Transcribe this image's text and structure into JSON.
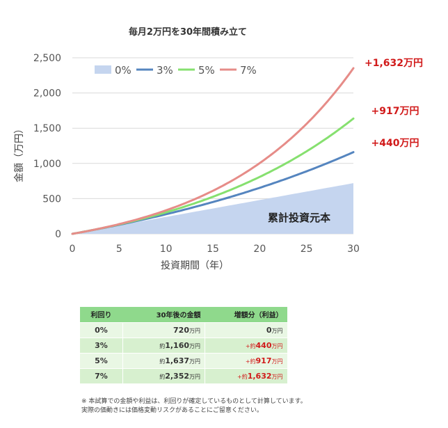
{
  "chart_data": {
    "type": "area+line",
    "title": "毎月2万円を30年間積み立て",
    "xlabel": "投資期間（年）",
    "ylabel": "金額（万円）",
    "xlim": [
      0,
      30
    ],
    "ylim": [
      0,
      2500
    ],
    "xticks": [
      "0",
      "5",
      "10",
      "15",
      "20",
      "25",
      "30"
    ],
    "yticks": [
      "0",
      "500",
      "1,000",
      "1,500",
      "2,000",
      "2,500"
    ],
    "legend_position": "top-left",
    "series": [
      {
        "name": "0%",
        "kind": "area",
        "rate": 0,
        "end_value": 720,
        "color": "#c5d5ef"
      },
      {
        "name": "3%",
        "kind": "line",
        "rate": 0.03,
        "end_value": 1160,
        "color": "#5585bf"
      },
      {
        "name": "5%",
        "kind": "line",
        "rate": 0.05,
        "end_value": 1637,
        "color": "#86e06f"
      },
      {
        "name": "7%",
        "kind": "line",
        "rate": 0.07,
        "end_value": 2352,
        "color": "#e68c88"
      }
    ],
    "area_label": "累計投資元本",
    "gain_labels": [
      {
        "text": "+1,632万円",
        "series": "7%"
      },
      {
        "text": "+917万円",
        "series": "5%"
      },
      {
        "text": "+440万円",
        "series": "3%"
      }
    ]
  },
  "table": {
    "headers": [
      "利回り",
      "30年後の金額",
      "増額分（利益）"
    ],
    "rows": [
      {
        "rate": "0%",
        "prefix": "",
        "amount": "720",
        "unit": "万円",
        "gain_prefix": "",
        "gain": "0",
        "gain_unit": "万円",
        "gain_red": false
      },
      {
        "rate": "3%",
        "prefix": "約",
        "amount": "1,160",
        "unit": "万円",
        "gain_prefix": "+約",
        "gain": "440",
        "gain_unit": "万円",
        "gain_red": true
      },
      {
        "rate": "5%",
        "prefix": "約",
        "amount": "1,637",
        "unit": "万円",
        "gain_prefix": "+約",
        "gain": "917",
        "gain_unit": "万円",
        "gain_red": true
      },
      {
        "rate": "7%",
        "prefix": "約",
        "amount": "2,352",
        "unit": "万円",
        "gain_prefix": "+約",
        "gain": "1,632",
        "gain_unit": "万円",
        "gain_red": true
      }
    ]
  },
  "notes": [
    "※ 本試算での金額や利益は、利回りが確定しているものとして計算しています。",
    "実際の価動きには価格変動リスクがあることにご留意ください。"
  ]
}
